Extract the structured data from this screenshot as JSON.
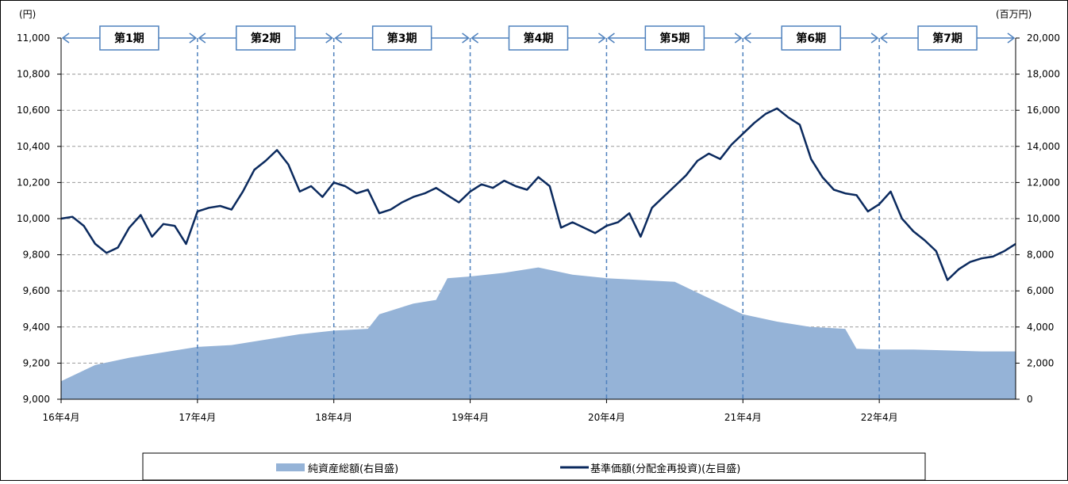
{
  "chart_data": {
    "type": "line",
    "left_axis": {
      "unit": "(円)",
      "ylim": [
        9000,
        11000
      ],
      "ticks": [
        "9,000",
        "9,200",
        "9,400",
        "9,600",
        "9,800",
        "10,000",
        "10,200",
        "10,400",
        "10,600",
        "10,800",
        "11,000"
      ]
    },
    "right_axis": {
      "unit": "(百万円)",
      "ylim": [
        0,
        20000
      ],
      "ticks": [
        "0",
        "2,000",
        "4,000",
        "6,000",
        "8,000",
        "10,000",
        "12,000",
        "14,000",
        "16,000",
        "18,000",
        "20,000"
      ]
    },
    "x_ticks": [
      "16年4月",
      "17年4月",
      "18年4月",
      "19年4月",
      "20年4月",
      "21年4月",
      "22年4月"
    ],
    "x_range": [
      "2016-04",
      "2023-04"
    ],
    "periods": [
      "第1期",
      "第2期",
      "第3期",
      "第4期",
      "第5期",
      "第6期",
      "第7期"
    ],
    "grid": true,
    "legend_position": "bottom",
    "series": [
      {
        "name": "純資産総額(右目盛)",
        "type": "area",
        "axis": "right",
        "color": "#95b3d7",
        "x": [
          "2016-04",
          "2016-07",
          "2016-10",
          "2017-01",
          "2017-04",
          "2017-07",
          "2017-10",
          "2018-01",
          "2018-04",
          "2018-07",
          "2018-08",
          "2018-11",
          "2019-01",
          "2019-02",
          "2019-04",
          "2019-07",
          "2019-10",
          "2020-01",
          "2020-04",
          "2020-07",
          "2020-10",
          "2021-01",
          "2021-04",
          "2021-07",
          "2021-10",
          "2022-01",
          "2022-02",
          "2022-04",
          "2022-07",
          "2022-10",
          "2023-01",
          "2023-04"
        ],
        "values": [
          1000,
          1900,
          2300,
          2600,
          2900,
          3000,
          3300,
          3600,
          3800,
          3900,
          4700,
          5300,
          5500,
          6700,
          6800,
          7000,
          7300,
          6900,
          6700,
          6600,
          6500,
          5600,
          4700,
          4300,
          4000,
          3900,
          2800,
          2750,
          2750,
          2700,
          2650,
          2650
        ]
      },
      {
        "name": "基準価額(分配金再投資)(左目盛)",
        "type": "line",
        "axis": "left",
        "color": "#0b2a5e",
        "x": [
          "2016-04",
          "2016-05",
          "2016-06",
          "2016-07",
          "2016-08",
          "2016-09",
          "2016-10",
          "2016-11",
          "2016-12",
          "2017-01",
          "2017-02",
          "2017-03",
          "2017-04",
          "2017-05",
          "2017-06",
          "2017-07",
          "2017-08",
          "2017-09",
          "2017-10",
          "2017-11",
          "2017-12",
          "2018-01",
          "2018-02",
          "2018-03",
          "2018-04",
          "2018-05",
          "2018-06",
          "2018-07",
          "2018-08",
          "2018-09",
          "2018-10",
          "2018-11",
          "2018-12",
          "2019-01",
          "2019-02",
          "2019-03",
          "2019-04",
          "2019-05",
          "2019-06",
          "2019-07",
          "2019-08",
          "2019-09",
          "2019-10",
          "2019-11",
          "2019-12",
          "2020-01",
          "2020-02",
          "2020-03",
          "2020-04",
          "2020-05",
          "2020-06",
          "2020-07",
          "2020-08",
          "2020-09",
          "2020-10",
          "2020-11",
          "2020-12",
          "2021-01",
          "2021-02",
          "2021-03",
          "2021-04",
          "2021-05",
          "2021-06",
          "2021-07",
          "2021-08",
          "2021-09",
          "2021-10",
          "2021-11",
          "2021-12",
          "2022-01",
          "2022-02",
          "2022-03",
          "2022-04",
          "2022-05",
          "2022-06",
          "2022-07",
          "2022-08",
          "2022-09",
          "2022-10",
          "2022-11",
          "2022-12",
          "2023-01",
          "2023-02",
          "2023-03",
          "2023-04"
        ],
        "values": [
          10000,
          10010,
          9960,
          9860,
          9810,
          9840,
          9950,
          10020,
          9900,
          9970,
          9960,
          9860,
          10040,
          10060,
          10070,
          10050,
          10150,
          10270,
          10320,
          10380,
          10300,
          10150,
          10180,
          10120,
          10200,
          10180,
          10140,
          10160,
          10030,
          10050,
          10090,
          10120,
          10140,
          10170,
          10130,
          10090,
          10150,
          10190,
          10170,
          10210,
          10180,
          10160,
          10230,
          10180,
          9950,
          9980,
          9950,
          9920,
          9960,
          9980,
          10030,
          9900,
          10060,
          10120,
          10180,
          10240,
          10320,
          10360,
          10330,
          10410,
          10470,
          10530,
          10580,
          10610,
          10560,
          10520,
          10330,
          10230,
          10160,
          10140,
          10130,
          10040,
          10080,
          10150,
          10000,
          9930,
          9880,
          9820,
          9660,
          9720,
          9760,
          9780,
          9790,
          9820,
          9860
        ]
      }
    ]
  },
  "legend": {
    "area_label": "純資産総額(右目盛)",
    "line_label": "基準価額(分配金再投資)(左目盛)"
  }
}
